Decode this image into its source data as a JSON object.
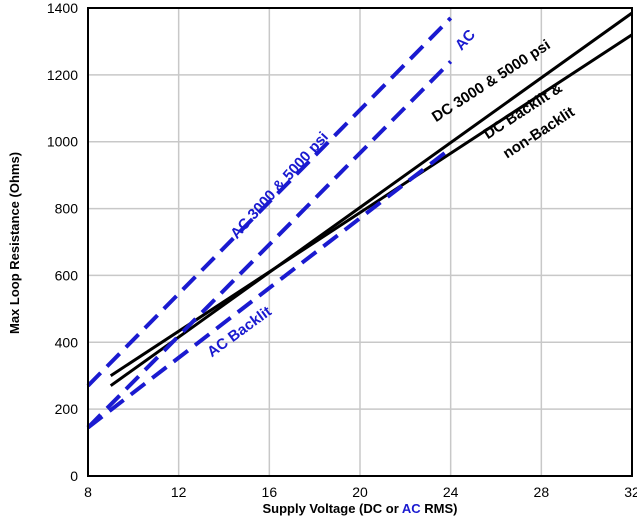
{
  "chart_data": {
    "type": "line",
    "title": "",
    "xlabel": {
      "prefix": "Supply Voltage (DC or ",
      "highlight": "AC",
      "suffix": " RMS)"
    },
    "ylabel": "Max Loop Resistance (Ohms)",
    "xlim": [
      8,
      32
    ],
    "ylim": [
      0,
      1400
    ],
    "xticks": [
      8,
      12,
      16,
      20,
      24,
      28,
      32
    ],
    "yticks": [
      0,
      200,
      400,
      600,
      800,
      1000,
      1200,
      1400
    ],
    "grid": true,
    "legend": "none",
    "series": [
      {
        "name": "DC 3000 & 5000 psi",
        "color": "#000000",
        "dash": "solid",
        "x": [
          9,
          32
        ],
        "y": [
          270,
          1385
        ]
      },
      {
        "name": "DC Backlit & non-Backlit",
        "color": "#000000",
        "dash": "solid",
        "x": [
          9,
          32
        ],
        "y": [
          300,
          1320
        ]
      },
      {
        "name": "AC 3000 & 5000 psi",
        "color": "#1a1ad0",
        "dash": "dashed",
        "x": [
          8,
          24
        ],
        "y": [
          270,
          1370
        ]
      },
      {
        "name": "AC",
        "color": "#1a1ad0",
        "dash": "dashed",
        "x": [
          8,
          24
        ],
        "y": [
          145,
          1240
        ]
      },
      {
        "name": "AC Backlit",
        "color": "#1a1ad0",
        "dash": "dashed",
        "x": [
          8,
          24
        ],
        "y": [
          145,
          980
        ]
      }
    ],
    "annotations": [
      {
        "text": "DC 3000 & 5000 psi",
        "color": "#000000",
        "x": 25.9,
        "y": 1170,
        "angle": -33
      },
      {
        "text": "DC Backlit &",
        "color": "#000000",
        "x": 27.3,
        "y": 1080,
        "angle": -33
      },
      {
        "text": "non-Backlit",
        "color": "#000000",
        "x": 28.0,
        "y": 1015,
        "angle": -33
      },
      {
        "text": "AC 3000 & 5000 psi",
        "color": "#1a1ad0",
        "x": 16.6,
        "y": 860,
        "angle": -48
      },
      {
        "text": "AC",
        "color": "#1a1ad0",
        "x": 24.8,
        "y": 1295,
        "angle": -48
      },
      {
        "text": "AC Backlit",
        "color": "#1a1ad0",
        "x": 14.8,
        "y": 420,
        "angle": -36
      }
    ],
    "colors": {
      "dc": "#000000",
      "ac": "#1a1ad0",
      "grid": "#c8c8c8",
      "axis": "#000000"
    }
  }
}
